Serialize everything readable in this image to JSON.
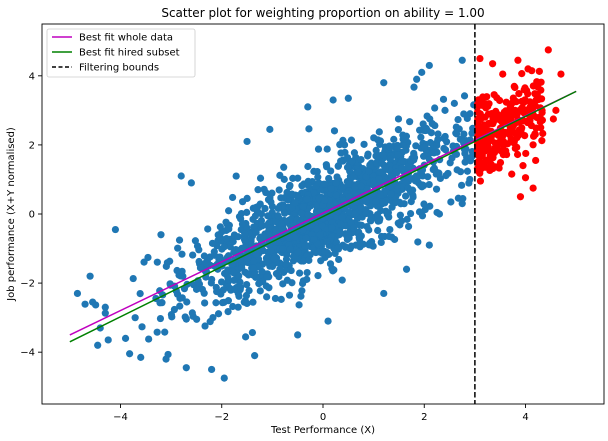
{
  "chart_data": {
    "type": "scatter",
    "title": "Scatter plot for weighting proportion on ability = 1.00",
    "xlabel": "Test Performance (X)",
    "ylabel": "Job performance (X+Y normalised)",
    "xlim": [
      -5.55,
      5.55
    ],
    "ylim": [
      -5.5,
      5.5
    ],
    "xticks": [
      -4,
      -2,
      0,
      2,
      4
    ],
    "yticks": [
      -4,
      -2,
      0,
      2,
      4
    ],
    "grid": false,
    "legend_position": "upper left",
    "series": [
      {
        "name": "Best fit whole data",
        "kind": "line",
        "color": "#bf00bf",
        "x": [
          -5.0,
          5.0
        ],
        "y": [
          -3.5,
          3.55
        ]
      },
      {
        "name": "Best fit hired subset",
        "kind": "line",
        "color": "#008000",
        "x": [
          -5.0,
          5.0
        ],
        "y": [
          -3.7,
          3.55
        ]
      },
      {
        "name": "Filtering bounds",
        "kind": "vline",
        "color": "#000000",
        "x": 3.0
      },
      {
        "kind": "scatter",
        "color": "#1f77b4",
        "cloud": {
          "slope": 0.72,
          "intercept": -0.05,
          "spread": 1.15,
          "xmin": -4.8,
          "xmax": 3.0,
          "count": 1500
        },
        "outliers": [
          [
            -4.85,
            -2.3
          ],
          [
            -4.6,
            -1.8
          ],
          [
            -4.45,
            -3.8
          ],
          [
            -4.3,
            -2.7
          ],
          [
            -4.4,
            -3.3
          ],
          [
            -4.1,
            -0.45
          ],
          [
            -3.6,
            -4.15
          ],
          [
            -3.2,
            -0.6
          ],
          [
            -3.1,
            -4.2
          ],
          [
            -2.8,
            1.1
          ],
          [
            -2.2,
            -4.5
          ],
          [
            -2.7,
            -4.45
          ],
          [
            -1.95,
            -4.75
          ],
          [
            -1.35,
            -4.1
          ],
          [
            -0.5,
            -3.5
          ],
          [
            -2.6,
            0.9
          ],
          [
            -1.5,
            2.1
          ],
          [
            -1.05,
            2.45
          ],
          [
            0.2,
            3.3
          ],
          [
            -0.3,
            3.1
          ],
          [
            0.5,
            3.35
          ],
          [
            1.2,
            3.8
          ],
          [
            1.95,
            4.1
          ],
          [
            2.1,
            4.3
          ],
          [
            2.75,
            4.45
          ],
          [
            2.3,
            0.0
          ],
          [
            2.1,
            -0.9
          ],
          [
            1.65,
            -1.6
          ],
          [
            1.2,
            -2.3
          ],
          [
            0.1,
            -3.1
          ],
          [
            2.75,
            0.3
          ],
          [
            2.9,
            1.0
          ],
          [
            -4.55,
            -2.55
          ],
          [
            -3.9,
            -3.6
          ],
          [
            1.85,
            3.9
          ]
        ]
      },
      {
        "kind": "scatter",
        "color": "#ff0000",
        "cloud": {
          "slope": 0.72,
          "intercept": -0.05,
          "spread": 0.9,
          "xmin": 3.0,
          "xmax": 4.3,
          "count": 260
        },
        "outliers": [
          [
            4.45,
            4.75
          ],
          [
            4.6,
            3.0
          ],
          [
            4.55,
            2.75
          ],
          [
            4.3,
            2.5
          ],
          [
            4.2,
            1.55
          ],
          [
            4.15,
            0.75
          ],
          [
            4.0,
            1.05
          ],
          [
            3.9,
            0.5
          ],
          [
            3.85,
            4.45
          ],
          [
            3.55,
            4.05
          ],
          [
            3.1,
            4.5
          ],
          [
            3.35,
            4.35
          ],
          [
            4.05,
            4.2
          ],
          [
            4.7,
            4.05
          ],
          [
            3.95,
            1.4
          ]
        ]
      }
    ]
  }
}
